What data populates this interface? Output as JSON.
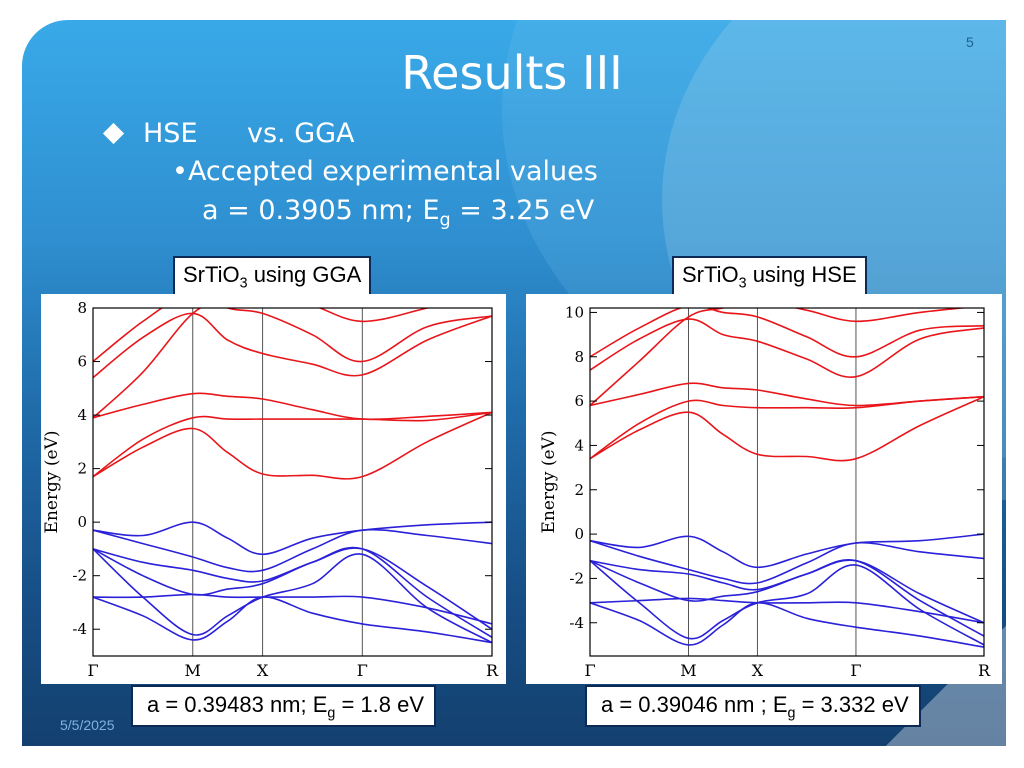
{
  "slide": {
    "number": "5",
    "title": "Results III",
    "date": "5/5/2025",
    "bullet_main": {
      "left": "HSE",
      "right": "vs. GGA"
    },
    "bullet_sub": "Accepted experimental values",
    "experimental": {
      "prefix": "a = 0.3905 nm; E",
      "sub": "g",
      "suffix": " = 3.25 eV"
    }
  },
  "labels": {
    "gga": {
      "prefix": "SrTiO",
      "sub": "3",
      "suffix": " using GGA"
    },
    "hse": {
      "prefix": "SrTiO",
      "sub": "3",
      "suffix": " using HSE"
    }
  },
  "captions": {
    "gga": {
      "prefix": "a = 0.39483 nm; E",
      "sub": "g",
      "suffix": " = 1.8 eV"
    },
    "hse": {
      "prefix": "a = 0.39046 nm ; E",
      "sub": "g",
      "suffix": " = 3.332 eV"
    }
  },
  "colors": {
    "conduction": "#e8161b",
    "valence": "#2a21d8",
    "axis": "#000000",
    "grid": "#555555"
  },
  "chart_data": [
    {
      "id": "gga",
      "type": "line",
      "title": "",
      "xlabel": "",
      "ylabel": "Energy (eV)",
      "ylim": [
        -5,
        8
      ],
      "xlim": [
        0,
        4
      ],
      "yticks": [
        -4,
        -2,
        0,
        2,
        4,
        6,
        8
      ],
      "ytick_labels": [
        "-4",
        "-2",
        "0",
        "2",
        "4",
        "6",
        "8"
      ],
      "kpoints": [
        {
          "label": "Γ",
          "x": 0
        },
        {
          "label": "M",
          "x": 1
        },
        {
          "label": "X",
          "x": 1.7
        },
        {
          "label": "Γ",
          "x": 2.7
        },
        {
          "label": "R",
          "x": 4
        }
      ],
      "x": [
        0,
        0.5,
        1,
        1.35,
        1.7,
        2.2,
        2.7,
        3.35,
        4
      ],
      "series": [
        {
          "name": "CB1",
          "band": "conduction",
          "values": [
            1.7,
            2.8,
            3.5,
            2.6,
            1.8,
            1.75,
            1.7,
            3.0,
            4.1
          ]
        },
        {
          "name": "CB2",
          "band": "conduction",
          "values": [
            1.7,
            3.1,
            3.9,
            3.85,
            3.85,
            3.85,
            3.85,
            3.8,
            4.1
          ]
        },
        {
          "name": "CB3",
          "band": "conduction",
          "values": [
            3.9,
            4.4,
            4.8,
            4.7,
            4.6,
            4.2,
            3.85,
            3.95,
            4.1
          ]
        },
        {
          "name": "CB4",
          "band": "conduction",
          "values": [
            5.4,
            6.9,
            7.8,
            6.8,
            6.3,
            5.9,
            5.5,
            6.8,
            7.7
          ]
        },
        {
          "name": "CB5",
          "band": "conduction",
          "values": [
            6.0,
            7.5,
            8.6,
            8.0,
            7.8,
            7.0,
            6.0,
            7.3,
            7.7
          ]
        },
        {
          "name": "CB6",
          "band": "conduction",
          "values": [
            3.9,
            5.6,
            7.8,
            8.3,
            8.6,
            8.1,
            7.5,
            8.0,
            8.6
          ]
        },
        {
          "name": "VB1",
          "band": "valence",
          "values": [
            -0.3,
            -0.5,
            0.0,
            -0.6,
            -1.2,
            -0.6,
            -0.3,
            -0.1,
            0.0
          ]
        },
        {
          "name": "VB2",
          "band": "valence",
          "values": [
            -0.3,
            -0.8,
            -1.3,
            -1.7,
            -1.8,
            -1.0,
            -0.3,
            -0.5,
            -0.8
          ]
        },
        {
          "name": "VB3",
          "band": "valence",
          "values": [
            -1.0,
            -1.5,
            -1.8,
            -2.1,
            -2.2,
            -1.5,
            -1.0,
            -2.4,
            -4.0
          ]
        },
        {
          "name": "VB4",
          "band": "valence",
          "values": [
            -1.0,
            -2.0,
            -2.7,
            -2.5,
            -2.3,
            -1.5,
            -1.0,
            -2.8,
            -4.3
          ]
        },
        {
          "name": "VB5",
          "band": "valence",
          "values": [
            -1.0,
            -2.8,
            -4.2,
            -3.5,
            -2.8,
            -2.3,
            -1.2,
            -3.2,
            -4.5
          ]
        },
        {
          "name": "VB6",
          "band": "valence",
          "values": [
            -2.8,
            -2.8,
            -2.7,
            -2.8,
            -2.8,
            -2.8,
            -2.8,
            -3.2,
            -3.8
          ]
        },
        {
          "name": "VB7",
          "band": "valence",
          "values": [
            -2.8,
            -3.5,
            -4.4,
            -3.7,
            -2.8,
            -3.4,
            -3.8,
            -4.1,
            -4.5
          ]
        }
      ]
    },
    {
      "id": "hse",
      "type": "line",
      "title": "",
      "xlabel": "",
      "ylabel": "Energy (eV)",
      "ylim": [
        -5.5,
        10.2
      ],
      "xlim": [
        0,
        4
      ],
      "yticks": [
        -4,
        -2,
        0,
        2,
        4,
        6,
        8,
        10
      ],
      "ytick_labels": [
        "-4",
        "-2",
        "0",
        "2",
        "4",
        "6",
        "8",
        "10"
      ],
      "kpoints": [
        {
          "label": "Γ",
          "x": 0
        },
        {
          "label": "M",
          "x": 1
        },
        {
          "label": "X",
          "x": 1.7
        },
        {
          "label": "Γ",
          "x": 2.7
        },
        {
          "label": "R",
          "x": 4
        }
      ],
      "x": [
        0,
        0.5,
        1,
        1.35,
        1.7,
        2.2,
        2.7,
        3.35,
        4
      ],
      "series": [
        {
          "name": "CB1",
          "band": "conduction",
          "values": [
            3.4,
            4.7,
            5.5,
            4.5,
            3.6,
            3.5,
            3.4,
            4.9,
            6.2
          ]
        },
        {
          "name": "CB2",
          "band": "conduction",
          "values": [
            3.4,
            5.0,
            6.0,
            5.8,
            5.7,
            5.7,
            5.7,
            6.0,
            6.2
          ]
        },
        {
          "name": "CB3",
          "band": "conduction",
          "values": [
            5.8,
            6.3,
            6.8,
            6.6,
            6.5,
            6.1,
            5.8,
            6.0,
            6.2
          ]
        },
        {
          "name": "CB4",
          "band": "conduction",
          "values": [
            7.4,
            8.8,
            9.7,
            9.0,
            8.7,
            7.9,
            7.1,
            8.8,
            9.3
          ]
        },
        {
          "name": "CB5",
          "band": "conduction",
          "values": [
            8.0,
            9.3,
            10.3,
            10.0,
            9.8,
            8.9,
            8.0,
            9.2,
            9.4
          ]
        },
        {
          "name": "CB6",
          "band": "conduction",
          "values": [
            5.8,
            7.8,
            9.8,
            10.2,
            10.5,
            10.1,
            9.6,
            10.0,
            10.3
          ]
        },
        {
          "name": "VB1",
          "band": "valence",
          "values": [
            -0.3,
            -0.6,
            -0.1,
            -0.8,
            -1.5,
            -0.9,
            -0.4,
            -0.3,
            0.0
          ]
        },
        {
          "name": "VB2",
          "band": "valence",
          "values": [
            -0.3,
            -1.0,
            -1.6,
            -2.0,
            -2.2,
            -1.3,
            -0.4,
            -0.8,
            -1.1
          ]
        },
        {
          "name": "VB3",
          "band": "valence",
          "values": [
            -1.2,
            -1.6,
            -1.8,
            -2.2,
            -2.5,
            -1.8,
            -1.2,
            -2.7,
            -4.0
          ]
        },
        {
          "name": "VB4",
          "band": "valence",
          "values": [
            -1.2,
            -2.2,
            -3.0,
            -2.8,
            -2.6,
            -1.8,
            -1.2,
            -3.0,
            -4.6
          ]
        },
        {
          "name": "VB5",
          "band": "valence",
          "values": [
            -1.2,
            -3.1,
            -4.7,
            -3.9,
            -3.1,
            -2.7,
            -1.4,
            -3.4,
            -5.0
          ]
        },
        {
          "name": "VB6",
          "band": "valence",
          "values": [
            -3.1,
            -3.0,
            -2.9,
            -3.0,
            -3.1,
            -3.1,
            -3.1,
            -3.5,
            -4.0
          ]
        },
        {
          "name": "VB7",
          "band": "valence",
          "values": [
            -3.1,
            -3.9,
            -5.0,
            -4.1,
            -3.1,
            -3.8,
            -4.2,
            -4.6,
            -5.1
          ]
        }
      ]
    }
  ]
}
